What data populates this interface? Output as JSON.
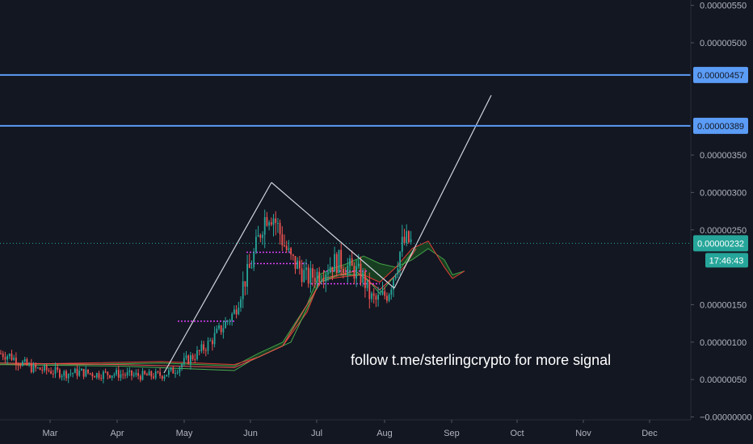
{
  "chart_data": {
    "type": "candlestick",
    "annotation": "follow t.me/sterlingcrypto for more signal",
    "x_tick_labels": [
      "Mar",
      "Apr",
      "May",
      "Jun",
      "Jul",
      "Aug",
      "Sep",
      "Oct",
      "Nov",
      "Dec"
    ],
    "y_tick_labels": [
      "0.00000550",
      "0.00000500",
      "0.00000350",
      "0.00000300",
      "0.00000250",
      "0.00000150",
      "0.00000100",
      "0.00000050",
      "−0.00000000"
    ],
    "y_tick_values": [
      5.5,
      5.0,
      3.5,
      3.0,
      2.5,
      1.5,
      1.0,
      0.5,
      0.0
    ],
    "ylim": [
      -0.05,
      5.65
    ],
    "horizontal_levels": [
      {
        "label": "0.00000457",
        "value": 4.57,
        "color": "#5b9cf6"
      },
      {
        "label": "0.00000389",
        "value": 3.89,
        "color": "#5b9cf6"
      }
    ],
    "current_price": {
      "label": "0.00000232",
      "value": 2.32,
      "color": "#26a69a"
    },
    "countdown": "17:46:43",
    "colors": {
      "up": "#26a69a",
      "down": "#ef5350",
      "cloud_green": "#1b5e20",
      "cloud_red": "#7a1f1f",
      "trend_line": "#d1d4dc"
    }
  }
}
